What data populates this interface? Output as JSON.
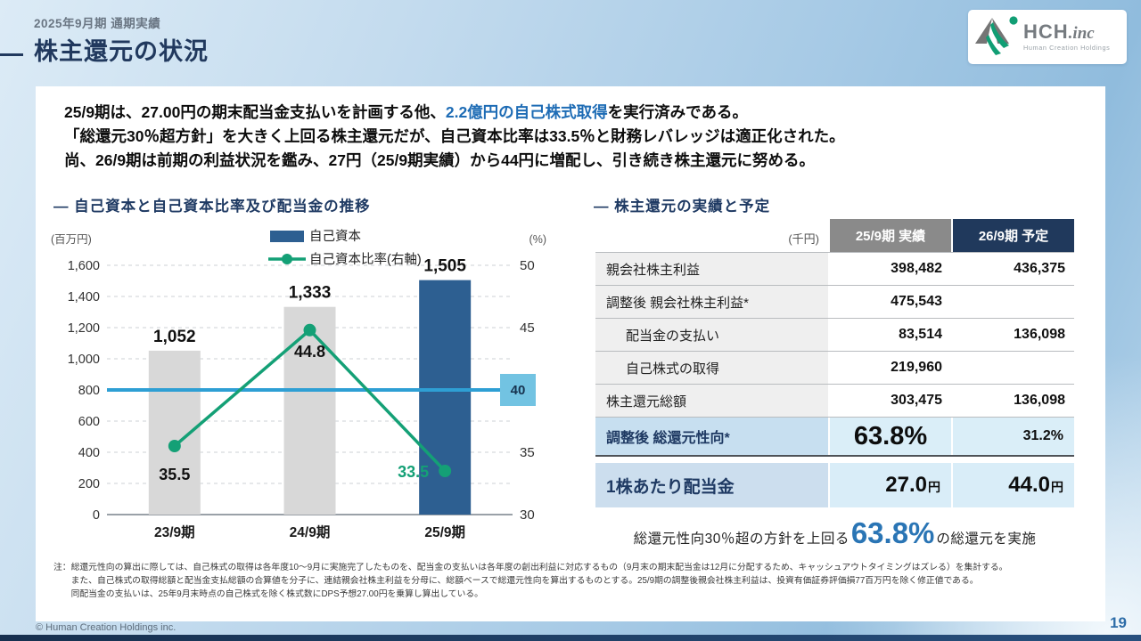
{
  "header": {
    "eyebrow": "2025年9月期 通期実績",
    "title": "株主還元の状況"
  },
  "logo": {
    "brand": "HCH",
    "suffix": ".inc",
    "subtitle": "Human Creation Holdings"
  },
  "lead": {
    "line1_pre": "25/9期は、27.00円の期末配当金支払いを計画する他、",
    "line1_highlight": "2.2億円の自己株式取得",
    "line1_post": "を実行済みである。",
    "line2": "「総還元30％超方針」を大きく上回る株主還元だが、自己資本比率は33.5％と財務レバレッジは適正化された。",
    "line3": "尚、26/9期は前期の利益状況を鑑み、27円（25/9期実績）から44円に増配し、引き続き株主還元に努める。"
  },
  "sections": {
    "chart_title": "— 自己資本と自己資本比率及び配当金の推移",
    "table_title": "— 株主還元の実績と予定"
  },
  "chart_data": {
    "type": "bar+line",
    "categories": [
      "23/9期",
      "24/9期",
      "25/9期"
    ],
    "series": [
      {
        "name": "自己資本",
        "type": "bar",
        "axis": "left",
        "values": [
          1052,
          1333,
          1505
        ],
        "value_labels": [
          "1,052",
          "1,333",
          "1,505"
        ],
        "bar_colors": [
          "#d8d8d8",
          "#d8d8d8",
          "#2d5f91"
        ]
      },
      {
        "name": "自己資本比率(右軸)",
        "type": "line",
        "axis": "right",
        "values": [
          35.5,
          44.8,
          33.5
        ],
        "value_labels": [
          "35.5",
          "44.8",
          "33.5"
        ],
        "color": "#14a076"
      }
    ],
    "left_axis": {
      "label": "(百万円)",
      "min": 0,
      "max": 1600,
      "step": 200
    },
    "right_axis": {
      "label": "(%)",
      "min": 30,
      "max": 50,
      "step": 5
    },
    "reference_line": {
      "value": 40,
      "label": "40",
      "color": "#2e9fd4",
      "label_bg": "#72c3e2"
    },
    "grid": "dashed horizontal"
  },
  "table": {
    "unit": "(千円)",
    "columns": [
      "25/9期 実績",
      "26/9期 予定"
    ],
    "rows": [
      {
        "label": "親会社株主利益",
        "actual": "398,482",
        "forecast": "436,375"
      },
      {
        "label": "調整後 親会社株主利益*",
        "actual": "475,543",
        "forecast": ""
      },
      {
        "label": "配当金の支払い",
        "actual": "83,514",
        "forecast": "136,098"
      },
      {
        "label": "自己株式の取得",
        "actual": "219,960",
        "forecast": ""
      },
      {
        "label": "株主還元総額",
        "actual": "303,475",
        "forecast": "136,098"
      }
    ],
    "payout_row": {
      "label": "調整後 総還元性向*",
      "actual": "63.8%",
      "forecast": "31.2%"
    },
    "dps_row": {
      "label": "1株あたり配当金",
      "actual": "27.0",
      "actual_unit": "円",
      "forecast": "44.0",
      "forecast_unit": "円"
    },
    "summary": {
      "pre": "総還元性向30％超の方針を上回る",
      "value": "63.8%",
      "post": "の総還元を実施"
    }
  },
  "note": {
    "prefix": "注：",
    "lines": [
      "総還元性向の算出に際しては、自己株式の取得は各年度10～9月に実施完了したものを、配当金の支払いは各年度の創出利益に対応するもの（9月末の期末配当金は12月に分配するため、キャッシュアウトタイミングはズレる）を集計する。",
      "また、自己株式の取得総額と配当金支払総額の合算値を分子に、連結親会社株主利益を分母に、総額ベースで総還元性向を算出するものとする。25/9期の調整後親会社株主利益は、投資有価証券評価損77百万円を除く修正値である。",
      "同配当金の支払いは、25年9月末時点の自己株式を除く株式数にDPS予想27.00円を乗算し算出している。"
    ]
  },
  "footer": {
    "copyright": "© Human Creation Holdings inc.",
    "page": "19"
  }
}
